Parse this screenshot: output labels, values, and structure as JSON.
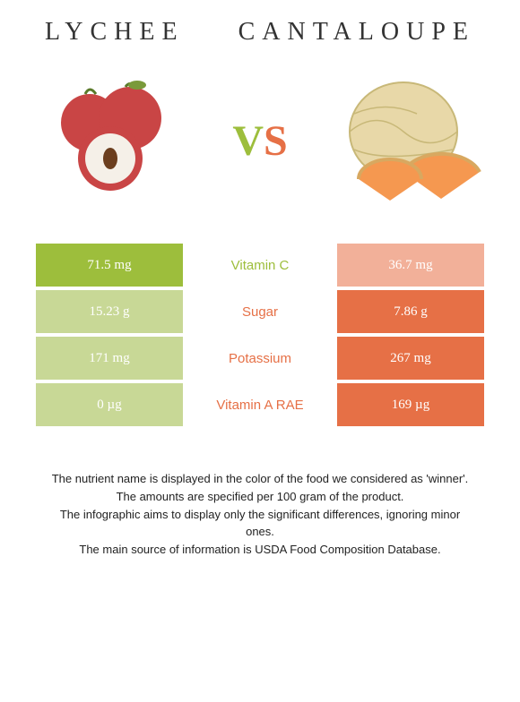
{
  "header": {
    "left_title": "Lychee",
    "right_title": "Cantaloupe"
  },
  "vs": {
    "v": "V",
    "s": "S"
  },
  "colors": {
    "left_primary": "#9dbe3c",
    "left_muted": "#c8d896",
    "right_primary": "#e67046",
    "right_muted": "#f2b099",
    "background": "#ffffff",
    "title_text": "#333333",
    "footer_text": "#222222"
  },
  "nutrients": [
    {
      "label": "Vitamin C",
      "left_value": "71.5 mg",
      "right_value": "36.7 mg",
      "winner": "left",
      "label_color": "#9dbe3c"
    },
    {
      "label": "Sugar",
      "left_value": "15.23 g",
      "right_value": "7.86 g",
      "winner": "right",
      "label_color": "#e67046"
    },
    {
      "label": "Potassium",
      "left_value": "171 mg",
      "right_value": "267 mg",
      "winner": "right",
      "label_color": "#e67046"
    },
    {
      "label": "Vitamin A RAE",
      "left_value": "0 µg",
      "right_value": "169 µg",
      "winner": "right",
      "label_color": "#e67046"
    }
  ],
  "footer": {
    "line1": "The nutrient name is displayed in the color of the food we considered as 'winner'.",
    "line2": "The amounts are specified per 100 gram of the product.",
    "line3": "The infographic aims to display only the significant differences, ignoring minor ones.",
    "line4": "The main source of information is USDA Food Composition Database."
  }
}
